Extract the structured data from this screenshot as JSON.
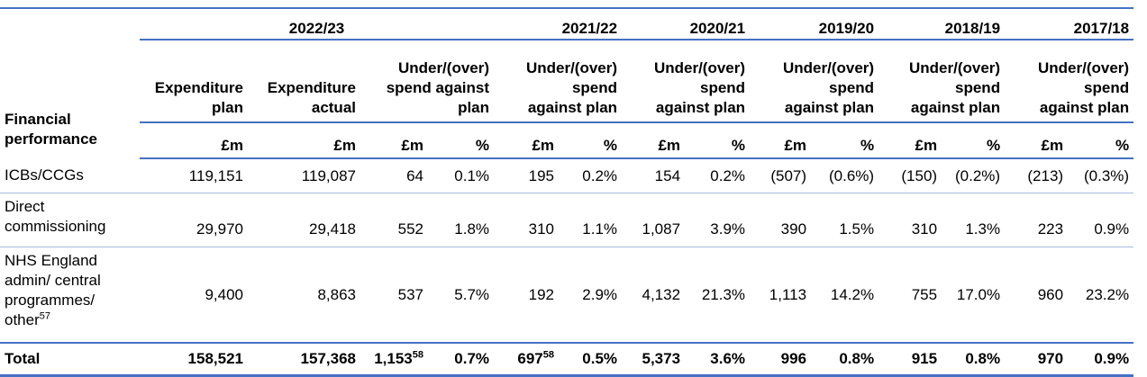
{
  "table": {
    "row_header": "Financial performance",
    "years": [
      "2022/23",
      "2021/22",
      "2020/21",
      "2019/20",
      "2018/19",
      "2017/18"
    ],
    "columns": [
      "Expenditure plan",
      "Expenditure actual",
      "Under/(over) spend against plan",
      "Under/(over) spend against plan",
      "Under/(over) spend against plan",
      "Under/(over) spend against plan",
      "Under/(over) spend against plan",
      "Under/(over) spend against plan"
    ],
    "units": [
      "£m",
      "£m",
      "£m",
      "%",
      "£m",
      "%",
      "£m",
      "%",
      "£m",
      "%",
      "£m",
      "%",
      "£m",
      "%"
    ],
    "rows": [
      {
        "label": {
          "text": "ICBs/CCGs"
        },
        "cells": [
          {
            "text": "119,151"
          },
          {
            "text": "119,087"
          },
          {
            "text": "64"
          },
          {
            "text": "0.1%"
          },
          {
            "text": "195"
          },
          {
            "text": "0.2%"
          },
          {
            "text": "154"
          },
          {
            "text": "0.2%"
          },
          {
            "text": "(507)"
          },
          {
            "text": "(0.6%)"
          },
          {
            "text": "(150)"
          },
          {
            "text": "(0.2%)"
          },
          {
            "text": "(213)"
          },
          {
            "text": "(0.3%)"
          }
        ]
      },
      {
        "label": {
          "text": "Direct commissioning"
        },
        "cells": [
          {
            "text": "29,970"
          },
          {
            "text": "29,418"
          },
          {
            "text": "552"
          },
          {
            "text": "1.8%"
          },
          {
            "text": "310"
          },
          {
            "text": "1.1%"
          },
          {
            "text": "1,087"
          },
          {
            "text": "3.9%"
          },
          {
            "text": "390"
          },
          {
            "text": "1.5%"
          },
          {
            "text": "310"
          },
          {
            "text": "1.3%"
          },
          {
            "text": "223"
          },
          {
            "text": "0.9%"
          }
        ]
      },
      {
        "label": {
          "text": "NHS England admin/ central programmes/ other",
          "note": "57"
        },
        "cells": [
          {
            "text": "9,400"
          },
          {
            "text": "8,863"
          },
          {
            "text": "537"
          },
          {
            "text": "5.7%"
          },
          {
            "text": "192"
          },
          {
            "text": "2.9%"
          },
          {
            "text": "4,132"
          },
          {
            "text": "21.3%"
          },
          {
            "text": "1,113"
          },
          {
            "text": "14.2%"
          },
          {
            "text": "755"
          },
          {
            "text": "17.0%"
          },
          {
            "text": "960"
          },
          {
            "text": "23.2%"
          }
        ]
      },
      {
        "label": {
          "text": "Total"
        },
        "total": true,
        "cells": [
          {
            "text": "158,521"
          },
          {
            "text": "157,368"
          },
          {
            "text": "1,153",
            "note": "58"
          },
          {
            "text": "0.7%"
          },
          {
            "text": "697",
            "note": "58"
          },
          {
            "text": "0.5%"
          },
          {
            "text": "5,373"
          },
          {
            "text": "3.6%"
          },
          {
            "text": "996"
          },
          {
            "text": "0.8%"
          },
          {
            "text": "915"
          },
          {
            "text": "0.8%"
          },
          {
            "text": "970"
          },
          {
            "text": "0.9%"
          }
        ]
      }
    ]
  }
}
